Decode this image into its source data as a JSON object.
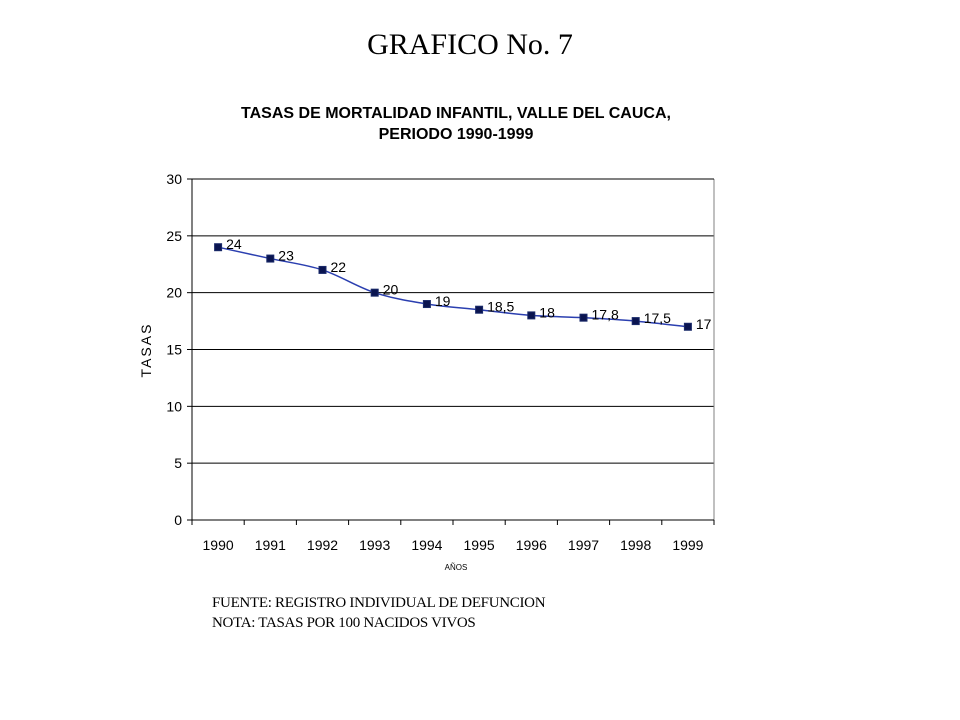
{
  "page": {
    "title": "GRAFICO No. 7",
    "source_note": "FUENTE: REGISTRO INDIVIDUAL DE DEFUNCION",
    "rate_note": "NOTA:  TASAS POR 100 NACIDOS VIVOS"
  },
  "chart_data": {
    "type": "line",
    "title": "TASAS DE MORTALIDAD INFANTIL, VALLE DEL CAUCA,",
    "subtitle": "PERIODO 1990-1999",
    "xlabel": "AÑOS",
    "ylabel": "TASAS",
    "categories": [
      "1990",
      "1991",
      "1992",
      "1993",
      "1994",
      "1995",
      "1996",
      "1997",
      "1998",
      "1999"
    ],
    "series": [
      {
        "values": [
          24,
          23,
          22,
          20,
          19,
          18.5,
          18,
          17.8,
          17.5,
          17
        ]
      }
    ],
    "data_labels": [
      "24",
      "23",
      "22",
      "20",
      "19",
      "18,5",
      "18",
      "17,8",
      "17,5",
      "17"
    ],
    "ylim": [
      0,
      30
    ],
    "yticks": [
      0,
      5,
      10,
      15,
      20,
      25,
      30
    ],
    "grid": true,
    "legend": "none",
    "colors": {
      "line": "#2b3fb0",
      "marker_fill": "#0a1450",
      "marker_edge": "#1a2a6a",
      "grid": "#000000"
    }
  }
}
